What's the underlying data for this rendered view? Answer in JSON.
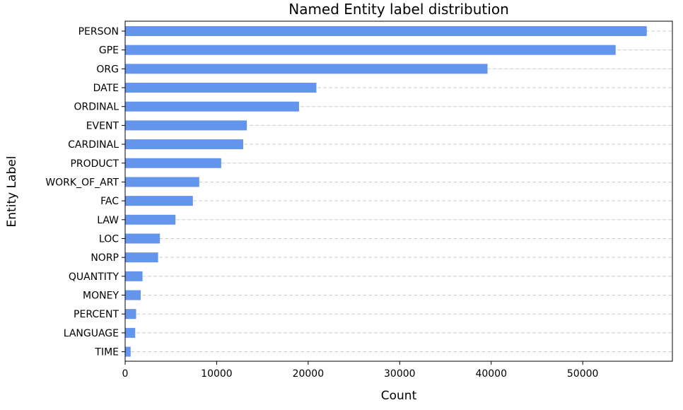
{
  "chart_data": {
    "type": "bar",
    "orientation": "horizontal",
    "title": "Named Entity label distribution",
    "xlabel": "Count",
    "ylabel": "Entity Label",
    "categories": [
      "PERSON",
      "GPE",
      "ORG",
      "DATE",
      "ORDINAL",
      "EVENT",
      "CARDINAL",
      "PRODUCT",
      "WORK_OF_ART",
      "FAC",
      "LAW",
      "LOC",
      "NORP",
      "QUANTITY",
      "MONEY",
      "PERCENT",
      "LANGUAGE",
      "TIME"
    ],
    "values": [
      57000,
      53600,
      39600,
      20900,
      19000,
      13300,
      12900,
      10500,
      8100,
      7400,
      5500,
      3800,
      3600,
      1900,
      1700,
      1200,
      1100,
      600
    ],
    "xlim": [
      0,
      59800
    ],
    "xticks": [
      0,
      10000,
      20000,
      30000,
      40000,
      50000
    ],
    "xtick_labels": [
      "0",
      "10000",
      "20000",
      "30000",
      "40000",
      "50000"
    ],
    "grid": "horizontal dashed",
    "colors": {
      "bar": "#6495ED",
      "grid": "#cccccc",
      "axis": "#000000"
    }
  }
}
